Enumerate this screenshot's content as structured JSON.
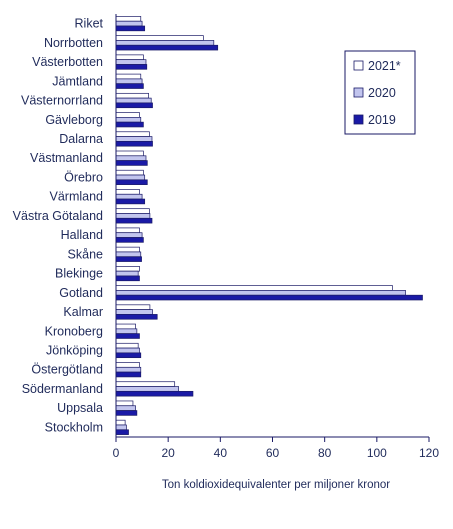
{
  "colors": {
    "series_2021": "#ffffff",
    "series_2020": "#c2c5ee",
    "series_2019": "#1a1aa6",
    "bar_stroke": "#1a1a66",
    "axis": "#1a1a66",
    "text": "#1f2a5a",
    "legend_border": "#1a1a66"
  },
  "chart_data": {
    "type": "bar",
    "orientation": "horizontal",
    "title": "",
    "xlabel": "Ton koldioxidequivalenter  per miljoner kronor",
    "ylabel": "",
    "xlim": [
      0,
      120
    ],
    "xticks": [
      0,
      20,
      40,
      60,
      80,
      100,
      120
    ],
    "grid": false,
    "legend_position": "top-right",
    "categories": [
      "Riket",
      "Norrbotten",
      "Västerbotten",
      "Jämtland",
      "Västernorrland",
      "Gävleborg",
      "Dalarna",
      "Västmanland",
      "Örebro",
      "Värmland",
      "Västra Götaland",
      "Halland",
      "Skåne",
      "Blekinge",
      "Gotland",
      "Kalmar",
      "Kronoberg",
      "Jönköping",
      "Östergötland",
      "Södermanland",
      "Uppsala",
      "Stockholm"
    ],
    "series": [
      {
        "name": "2021*",
        "values": [
          9.5,
          33.5,
          10.5,
          9.5,
          12.5,
          9.0,
          12.8,
          10.5,
          10.5,
          9.0,
          12.8,
          9.0,
          9.0,
          9.0,
          106.0,
          13.0,
          7.5,
          8.5,
          9.0,
          22.5,
          6.5,
          3.5
        ]
      },
      {
        "name": "2020",
        "values": [
          10.0,
          37.5,
          11.5,
          10.0,
          13.5,
          9.5,
          13.8,
          11.5,
          11.0,
          10.0,
          13.0,
          10.0,
          9.5,
          8.5,
          111.0,
          14.0,
          8.0,
          9.0,
          9.5,
          24.0,
          7.5,
          4.0
        ]
      },
      {
        "name": "2019",
        "values": [
          11.0,
          39.0,
          11.8,
          10.5,
          14.0,
          10.5,
          14.0,
          12.0,
          12.0,
          11.0,
          13.8,
          10.5,
          9.8,
          9.0,
          117.5,
          15.8,
          9.0,
          9.5,
          9.5,
          29.5,
          8.0,
          4.8
        ]
      }
    ]
  }
}
